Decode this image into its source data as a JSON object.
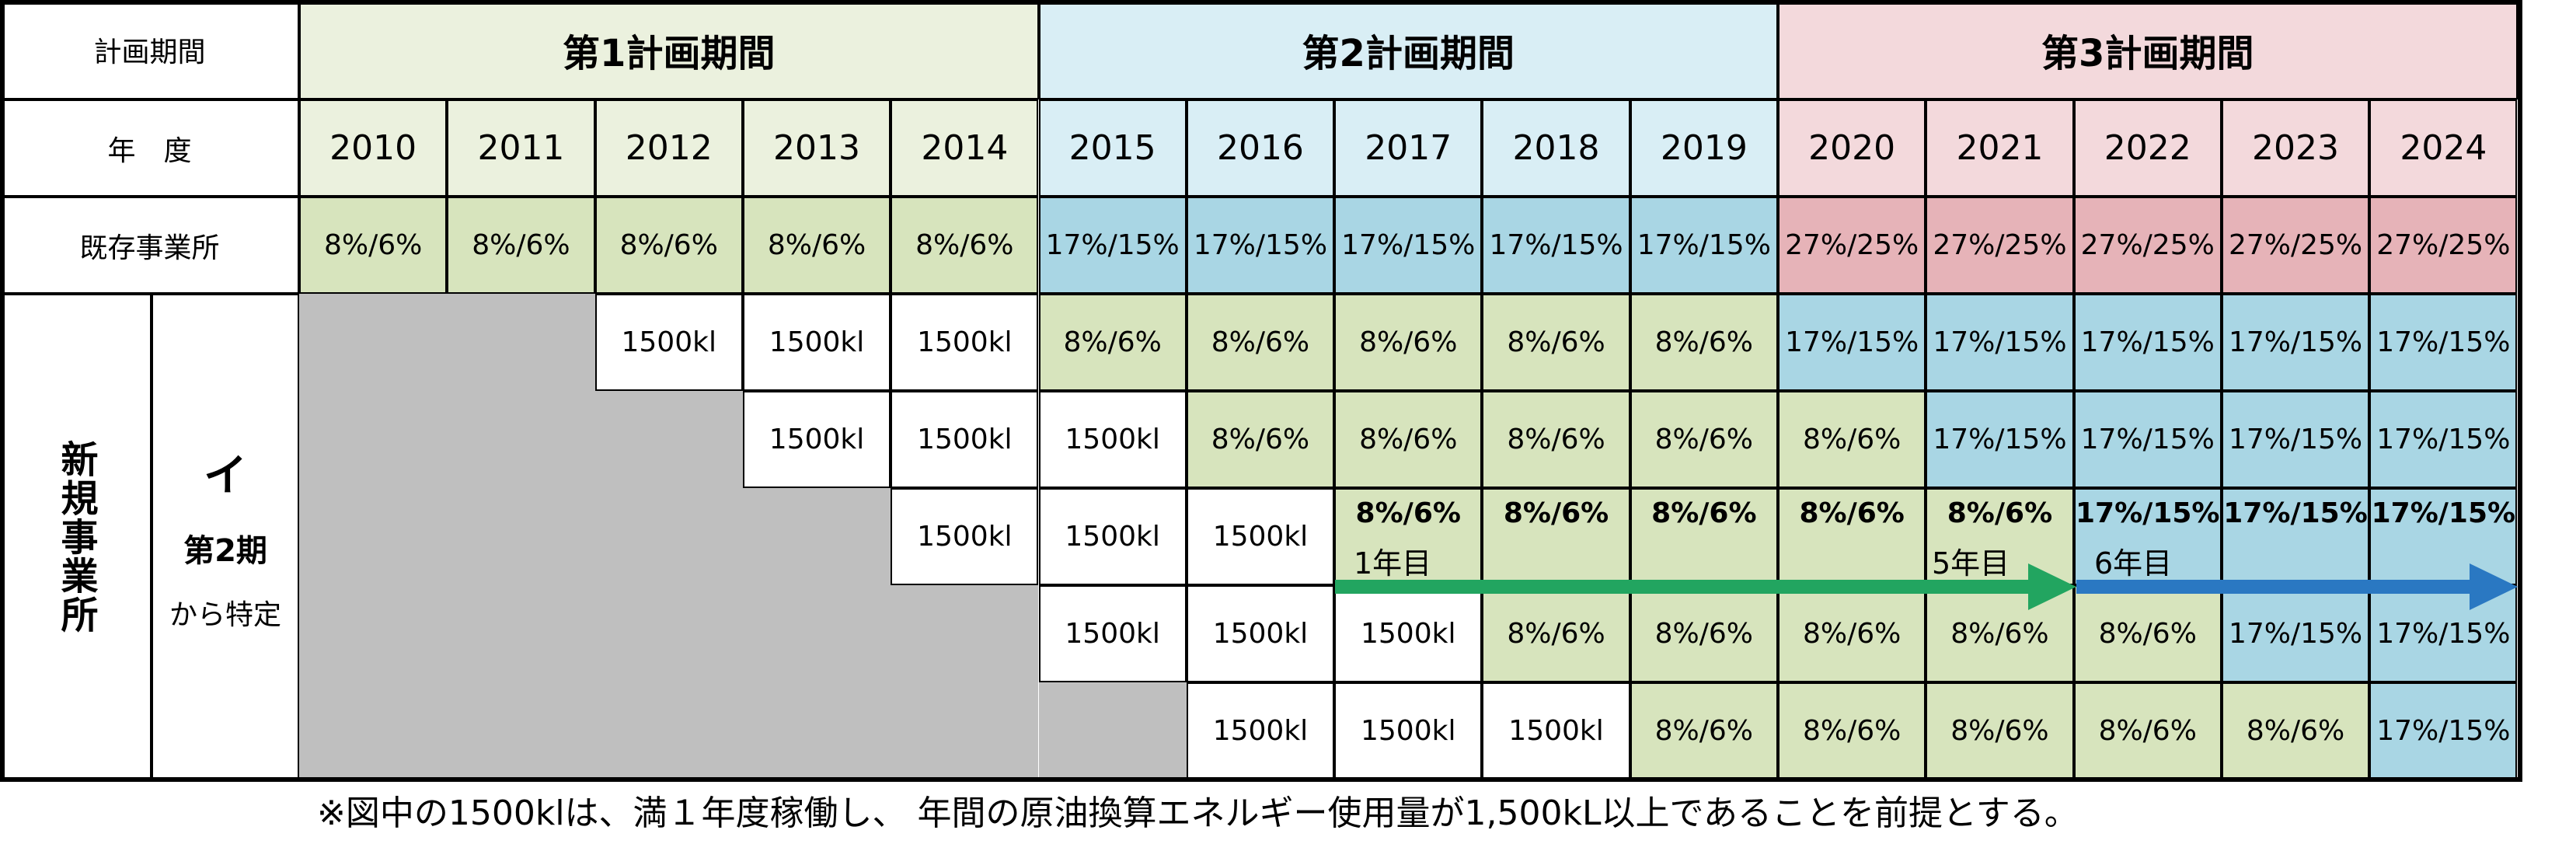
{
  "colors": {
    "p1_header": "#ebf1de",
    "p2_header": "#d9eef5",
    "p3_header": "#f3d9dc",
    "green": "#d7e4bd",
    "blue": "#a9d6e4",
    "pink": "#e6b3b8",
    "gray": "#bfbfbf",
    "white": "#ffffff",
    "arrow_green": "#22a560",
    "arrow_blue": "#2a78c2"
  },
  "header": {
    "period_label": "計画期間",
    "year_label": "年　度",
    "periods": [
      "第1計画期間",
      "第2計画期間",
      "第3計画期間"
    ],
    "years": [
      "2010",
      "2011",
      "2012",
      "2013",
      "2014",
      "2015",
      "2016",
      "2017",
      "2018",
      "2019",
      "2020",
      "2021",
      "2022",
      "2023",
      "2024"
    ]
  },
  "existing": {
    "label": "既存事業所",
    "values": [
      "8%/6%",
      "8%/6%",
      "8%/6%",
      "8%/6%",
      "8%/6%",
      "17%/15%",
      "17%/15%",
      "17%/15%",
      "17%/15%",
      "17%/15%",
      "27%/25%",
      "27%/25%",
      "27%/25%",
      "27%/25%",
      "27%/25%"
    ]
  },
  "new_offices": {
    "label": "新規事業所",
    "sub_letter": "イ",
    "sub_period": "第2期",
    "sub_suffix": "から特定",
    "rows": [
      [
        "",
        "",
        "1500kl",
        "1500kl",
        "1500kl",
        "8%/6%",
        "8%/6%",
        "8%/6%",
        "8%/6%",
        "8%/6%",
        "17%/15%",
        "17%/15%",
        "17%/15%",
        "17%/15%",
        "17%/15%"
      ],
      [
        "",
        "",
        "",
        "1500kl",
        "1500kl",
        "1500kl",
        "8%/6%",
        "8%/6%",
        "8%/6%",
        "8%/6%",
        "8%/6%",
        "17%/15%",
        "17%/15%",
        "17%/15%",
        "17%/15%"
      ],
      [
        "",
        "",
        "",
        "",
        "1500kl",
        "1500kl",
        "1500kl",
        "8%/6%",
        "8%/6%",
        "8%/6%",
        "8%/6%",
        "8%/6%",
        "17%/15%",
        "17%/15%",
        "17%/15%"
      ],
      [
        "",
        "",
        "",
        "",
        "",
        "1500kl",
        "1500kl",
        "1500kl",
        "8%/6%",
        "8%/6%",
        "8%/6%",
        "8%/6%",
        "8%/6%",
        "17%/15%",
        "17%/15%"
      ],
      [
        "",
        "",
        "",
        "",
        "",
        "",
        "1500kl",
        "1500kl",
        "1500kl",
        "8%/6%",
        "8%/6%",
        "8%/6%",
        "8%/6%",
        "8%/6%",
        "17%/15%"
      ]
    ]
  },
  "annotations": {
    "year1": "1年目",
    "year5": "5年目",
    "year6": "6年目"
  },
  "footnote": "※図中の1500klは、満１年度稼働し、 年間の原油換算エネルギー使用量が1,500kL以上であることを前提とする。"
}
